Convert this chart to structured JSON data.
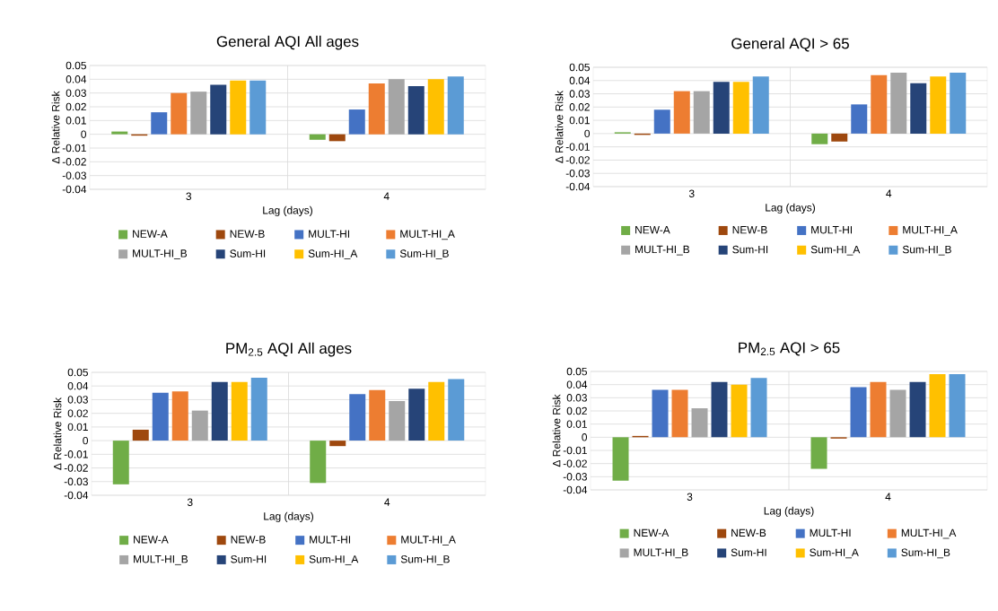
{
  "chart_data": [
    {
      "type": "bar",
      "title": "General AQI All ages",
      "xlabel": "Lag (days)",
      "ylabel": "Δ Relative Risk",
      "categories": [
        "3",
        "4"
      ],
      "ylim": [
        -0.04,
        0.05
      ],
      "yticks": [
        -0.04,
        -0.03,
        -0.02,
        -0.01,
        0,
        0.01,
        0.02,
        0.03,
        0.04,
        0.05
      ],
      "grid": true,
      "legend": "bottom",
      "series": [
        {
          "name": "NEW-A",
          "color": "#70ad47",
          "values": [
            0.002,
            -0.004
          ]
        },
        {
          "name": "NEW-B",
          "color": "#9e480e",
          "values": [
            -0.001,
            -0.005
          ]
        },
        {
          "name": "MULT-HI",
          "color": "#4472c4",
          "values": [
            0.016,
            0.018
          ]
        },
        {
          "name": "MULT-HI_A",
          "color": "#ed7d31",
          "values": [
            0.03,
            0.037
          ]
        },
        {
          "name": "MULT-HI_B",
          "color": "#a5a5a5",
          "values": [
            0.031,
            0.04
          ]
        },
        {
          "name": "Sum-HI",
          "color": "#264478",
          "values": [
            0.036,
            0.035
          ]
        },
        {
          "name": "Sum-HI_A",
          "color": "#ffc000",
          "values": [
            0.039,
            0.04
          ]
        },
        {
          "name": "Sum-HI_B",
          "color": "#5b9bd5",
          "values": [
            0.039,
            0.042
          ]
        }
      ]
    },
    {
      "type": "bar",
      "title": "General AQI > 65",
      "xlabel": "Lag (days)",
      "ylabel": "Δ Relative Risk",
      "categories": [
        "3",
        "4"
      ],
      "ylim": [
        -0.04,
        0.05
      ],
      "yticks": [
        -0.04,
        -0.03,
        -0.02,
        -0.01,
        0,
        0.01,
        0.02,
        0.03,
        0.04,
        0.05
      ],
      "grid": true,
      "legend": "bottom",
      "series": [
        {
          "name": "NEW-A",
          "color": "#70ad47",
          "values": [
            0.001,
            -0.008
          ]
        },
        {
          "name": "NEW-B",
          "color": "#9e480e",
          "values": [
            -0.001,
            -0.006
          ]
        },
        {
          "name": "MULT-HI",
          "color": "#4472c4",
          "values": [
            0.018,
            0.022
          ]
        },
        {
          "name": "MULT-HI_A",
          "color": "#ed7d31",
          "values": [
            0.032,
            0.044
          ]
        },
        {
          "name": "MULT-HI_B",
          "color": "#a5a5a5",
          "values": [
            0.032,
            0.046
          ]
        },
        {
          "name": "Sum-HI",
          "color": "#264478",
          "values": [
            0.039,
            0.038
          ]
        },
        {
          "name": "Sum-HI_A",
          "color": "#ffc000",
          "values": [
            0.039,
            0.043
          ]
        },
        {
          "name": "Sum-HI_B",
          "color": "#5b9bd5",
          "values": [
            0.043,
            0.046
          ]
        }
      ]
    },
    {
      "type": "bar",
      "title": "PM$_{2.5}$ AQI All ages",
      "xlabel": "Lag (days)",
      "ylabel": "Δ Relative Risk",
      "categories": [
        "3",
        "4"
      ],
      "ylim": [
        -0.04,
        0.05
      ],
      "yticks": [
        -0.04,
        -0.03,
        -0.02,
        -0.01,
        0,
        0.01,
        0.02,
        0.03,
        0.04,
        0.05
      ],
      "grid": true,
      "legend": "bottom",
      "series": [
        {
          "name": "NEW-A",
          "color": "#70ad47",
          "values": [
            -0.032,
            -0.031
          ]
        },
        {
          "name": "NEW-B",
          "color": "#9e480e",
          "values": [
            0.008,
            -0.004
          ]
        },
        {
          "name": "MULT-HI",
          "color": "#4472c4",
          "values": [
            0.035,
            0.034
          ]
        },
        {
          "name": "MULT-HI_A",
          "color": "#ed7d31",
          "values": [
            0.036,
            0.037
          ]
        },
        {
          "name": "MULT-HI_B",
          "color": "#a5a5a5",
          "values": [
            0.022,
            0.029
          ]
        },
        {
          "name": "Sum-HI",
          "color": "#264478",
          "values": [
            0.043,
            0.038
          ]
        },
        {
          "name": "Sum-HI_A",
          "color": "#ffc000",
          "values": [
            0.043,
            0.043
          ]
        },
        {
          "name": "Sum-HI_B",
          "color": "#5b9bd5",
          "values": [
            0.046,
            0.045
          ]
        }
      ]
    },
    {
      "type": "bar",
      "title": "PM$_{2.5}$ AQI > 65",
      "xlabel": "Lag (days)",
      "ylabel": "Δ Relative Risk",
      "categories": [
        "3",
        "4"
      ],
      "ylim": [
        -0.04,
        0.05
      ],
      "yticks": [
        -0.04,
        -0.03,
        -0.02,
        -0.01,
        0,
        0.01,
        0.02,
        0.03,
        0.04,
        0.05
      ],
      "grid": true,
      "legend": "bottom",
      "series": [
        {
          "name": "NEW-A",
          "color": "#70ad47",
          "values": [
            -0.033,
            -0.024
          ]
        },
        {
          "name": "NEW-B",
          "color": "#9e480e",
          "values": [
            0.001,
            -0.001
          ]
        },
        {
          "name": "MULT-HI",
          "color": "#4472c4",
          "values": [
            0.036,
            0.038
          ]
        },
        {
          "name": "MULT-HI_A",
          "color": "#ed7d31",
          "values": [
            0.036,
            0.042
          ]
        },
        {
          "name": "MULT-HI_B",
          "color": "#a5a5a5",
          "values": [
            0.022,
            0.036
          ]
        },
        {
          "name": "Sum-HI",
          "color": "#264478",
          "values": [
            0.042,
            0.042
          ]
        },
        {
          "name": "Sum-HI_A",
          "color": "#ffc000",
          "values": [
            0.04,
            0.048
          ]
        },
        {
          "name": "Sum-HI_B",
          "color": "#5b9bd5",
          "values": [
            0.045,
            0.048
          ]
        }
      ]
    }
  ]
}
